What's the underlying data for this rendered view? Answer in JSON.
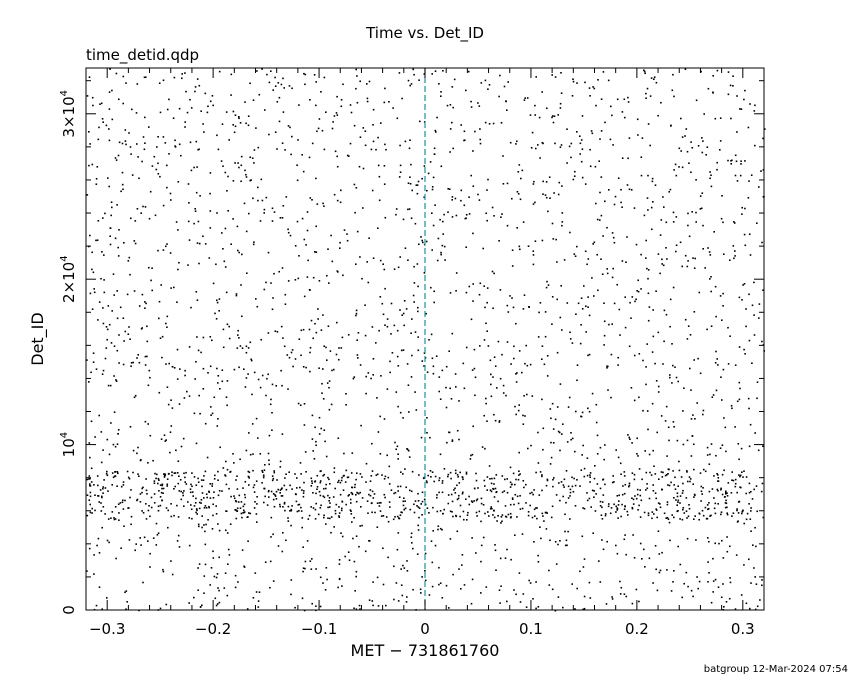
{
  "chart_data": {
    "type": "scatter",
    "title": "Time vs. Det_ID",
    "subtitle": "time_detid.qdp",
    "xlabel": "MET − 731861760",
    "ylabel": "Det_ID",
    "xlim": [
      -0.32,
      0.32
    ],
    "ylim": [
      0,
      32768
    ],
    "x_ticks": [
      {
        "value": -0.3,
        "label": "−0.3"
      },
      {
        "value": -0.2,
        "label": "−0.2"
      },
      {
        "value": -0.1,
        "label": "−0.1"
      },
      {
        "value": 0,
        "label": "0"
      },
      {
        "value": 0.1,
        "label": "0.1"
      },
      {
        "value": 0.2,
        "label": "0.2"
      },
      {
        "value": 0.3,
        "label": "0.3"
      }
    ],
    "y_ticks": [
      {
        "value": 0,
        "label": "0",
        "exp": ""
      },
      {
        "value": 10000,
        "label": "10",
        "exp": "4"
      },
      {
        "value": 20000,
        "label": "2×10",
        "exp": "4"
      },
      {
        "value": 30000,
        "label": "3×10",
        "exp": "4"
      }
    ],
    "vline": {
      "x": 0,
      "color": "#1e8fa8",
      "style": "dashed"
    },
    "marker_color": "#000000",
    "n_points_approx": 3300,
    "footer": "batgroup 12-Mar-2024 07:54",
    "grid": false
  }
}
